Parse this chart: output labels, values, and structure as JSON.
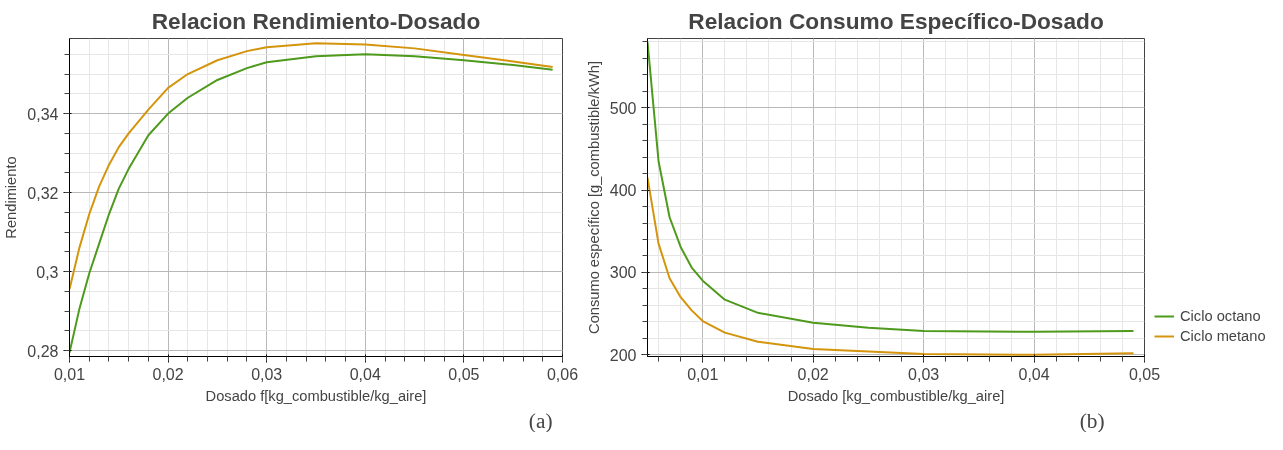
{
  "chart_data": [
    {
      "type": "line",
      "title": "Relacion Rendimiento-Dosado",
      "xlabel": "Dosado f[kg_combustible/kg_aire]",
      "ylabel": "Rendimiento",
      "x": [
        0.01,
        0.011,
        0.012,
        0.013,
        0.014,
        0.015,
        0.016,
        0.018,
        0.02,
        0.022,
        0.025,
        0.028,
        0.03,
        0.035,
        0.04,
        0.045,
        0.05,
        0.055,
        0.059
      ],
      "series": [
        {
          "color": "#4e9a1c",
          "values": [
            0.2795,
            0.2905,
            0.2995,
            0.307,
            0.3145,
            0.321,
            0.326,
            0.3345,
            0.34,
            0.344,
            0.3485,
            0.3515,
            0.353,
            0.3545,
            0.355,
            0.3545,
            0.3535,
            0.3523,
            0.3511
          ]
        },
        {
          "color": "#d4940c",
          "values": [
            0.2955,
            0.306,
            0.3145,
            0.3215,
            0.327,
            0.3315,
            0.335,
            0.341,
            0.3465,
            0.35,
            0.3535,
            0.3558,
            0.3568,
            0.3578,
            0.3575,
            0.3565,
            0.3548,
            0.3532,
            0.3518
          ]
        }
      ],
      "xlim": [
        0.01,
        0.06
      ],
      "ylim": [
        0.2785,
        0.359
      ],
      "xticks": [
        {
          "value": 0.01,
          "label": "0,01"
        },
        {
          "value": 0.02,
          "label": "0,02"
        },
        {
          "value": 0.03,
          "label": "0,03"
        },
        {
          "value": 0.04,
          "label": "0,04"
        },
        {
          "value": 0.05,
          "label": "0,05"
        },
        {
          "value": 0.06,
          "label": "0,06"
        }
      ],
      "yticks": [
        {
          "value": 0.28,
          "label": "0,28"
        },
        {
          "value": 0.3,
          "label": "0,3"
        },
        {
          "value": 0.32,
          "label": "0,32"
        },
        {
          "value": 0.34,
          "label": "0,34"
        }
      ],
      "grid": true,
      "legend": false,
      "annotations": [
        "(a)"
      ]
    },
    {
      "type": "line",
      "title": "Relacion Consumo Específico-Dosado",
      "xlabel": "Dosado [kg_combustible/kg_aire]",
      "ylabel": "Consumo específico [g_combustible/kWh]",
      "x": [
        0.005,
        0.006,
        0.007,
        0.008,
        0.009,
        0.01,
        0.012,
        0.015,
        0.02,
        0.025,
        0.03,
        0.04,
        0.049
      ],
      "series": [
        {
          "name": "Ciclo octano",
          "color": "#4e9a1c",
          "values": [
            580,
            435,
            367,
            331,
            306,
            290,
            267,
            251,
            239,
            233,
            229,
            228,
            229
          ]
        },
        {
          "name": "Ciclo metano",
          "color": "#d4940c",
          "values": [
            415,
            335,
            293,
            270,
            254,
            241,
            227,
            216,
            207,
            204,
            201,
            200,
            202
          ]
        }
      ],
      "xlim": [
        0.005,
        0.05
      ],
      "ylim": [
        198,
        584
      ],
      "xticks": [
        {
          "value": 0.01,
          "label": "0,01"
        },
        {
          "value": 0.02,
          "label": "0,02"
        },
        {
          "value": 0.03,
          "label": "0,03"
        },
        {
          "value": 0.04,
          "label": "0,04"
        },
        {
          "value": 0.05,
          "label": "0,05"
        }
      ],
      "yticks": [
        200,
        300,
        400,
        500
      ],
      "grid": true,
      "legend": "right",
      "annotations": [
        "(b)"
      ]
    }
  ]
}
